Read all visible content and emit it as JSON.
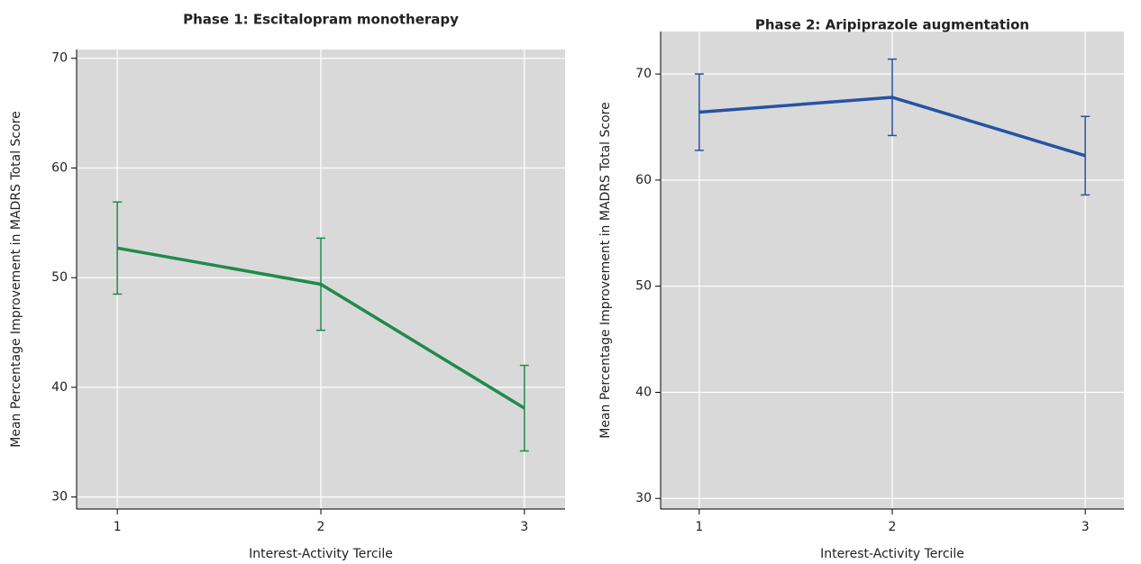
{
  "chart_data": [
    {
      "type": "line",
      "title": "Phase 1: Escitalopram monotherapy",
      "x_label": "Interest-Activity Tercile",
      "y_label": "Mean Percentage Improvement in MADRS Total Score",
      "x": [
        1,
        2,
        3
      ],
      "values": [
        52.7,
        49.4,
        38.1
      ],
      "errors": [
        4.2,
        4.2,
        3.9
      ],
      "color": "#1f8a4c",
      "xlim": [
        0.8,
        3.2
      ],
      "xticks": [
        1,
        2,
        3
      ],
      "ylim": [
        28.9,
        70.8
      ],
      "yticks": [
        30,
        40,
        50,
        60,
        70
      ],
      "grid": true
    },
    {
      "type": "line",
      "title": "Phase 2: Aripiprazole augmentation",
      "x_label": "Interest-Activity Tercile",
      "y_label": "Mean Percentage Improvement in MADRS Total Score",
      "x": [
        1,
        2,
        3
      ],
      "values": [
        66.4,
        67.8,
        62.3
      ],
      "errors": [
        3.6,
        3.6,
        3.7
      ],
      "color": "#2752a3",
      "xlim": [
        0.8,
        3.2
      ],
      "xticks": [
        1,
        2,
        3
      ],
      "ylim": [
        29.0,
        74.0
      ],
      "yticks": [
        30,
        40,
        50,
        60,
        70
      ],
      "grid": true
    }
  ]
}
